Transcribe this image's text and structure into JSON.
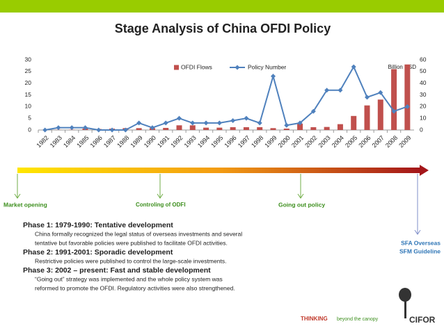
{
  "chart_data": {
    "type": "bar",
    "title": "Stage Analysis of China OFDI Policy",
    "annotation": "Billion USD",
    "categories": [
      "1982",
      "1983",
      "1984",
      "1985",
      "1986",
      "1987",
      "1988",
      "1989",
      "1990",
      "1991",
      "1992",
      "1993",
      "1994",
      "1995",
      "1996",
      "1997",
      "1998",
      "1999",
      "2000",
      "2001",
      "2002",
      "2003",
      "2004",
      "2005",
      "2006",
      "2007",
      "2008",
      "2009"
    ],
    "series": [
      {
        "name": "OFDI Flows",
        "color": "#c0504d",
        "type": "bar",
        "values": [
          0.04,
          0.09,
          0.13,
          0.6,
          0.45,
          0.6,
          0.8,
          0.8,
          0.8,
          0.9,
          2.0,
          2.0,
          1.0,
          1.0,
          1.2,
          1.2,
          1.2,
          0.8,
          0.6,
          2.7,
          1.2,
          1.3,
          2.5,
          6.0,
          10.5,
          13.0,
          26.0,
          28.0
        ]
      },
      {
        "name": "Policy Number",
        "color": "#4f81bd",
        "type": "line",
        "axis": "y2",
        "values": [
          0,
          2,
          2,
          2,
          0,
          0,
          0,
          6,
          2,
          6,
          10,
          6,
          6,
          6,
          8,
          10,
          6,
          46,
          4,
          6,
          16,
          34,
          34,
          54,
          28,
          32,
          16,
          20
        ]
      }
    ],
    "ylim": [
      0,
      30
    ],
    "yticks": [
      0,
      5,
      10,
      15,
      20,
      25,
      30
    ],
    "y2lim": [
      0,
      60
    ],
    "y2ticks": [
      0,
      10,
      20,
      30,
      40,
      50,
      60
    ],
    "grid": false,
    "legend": "top"
  },
  "timeline": {
    "labels": [
      "Market opening",
      "Controling of ODFI",
      "Going out policy"
    ],
    "right_labels": [
      "SFA Overseas",
      "SFM Guideline"
    ]
  },
  "phases": [
    {
      "title": "Phase 1: 1979-1990: Tentative development",
      "lines": [
        "China formally recognized the legal status of overseas investments and several",
        "tentative but favorable policies were published to facilitate OFDI activities."
      ]
    },
    {
      "title": "Phase 2: 1991-2001: Sporadic development",
      "lines": [
        "Restrictive policies were published to control the large-scale investments."
      ]
    },
    {
      "title": "Phase 3: 2002 – present: Fast and stable development",
      "lines": [
        "“Going out” strategy was implemented and the whole policy system was",
        "reformed to promote the OFDI. Regulatory activities were also strengthened."
      ]
    }
  ],
  "footer": {
    "tagline_bold": "THINKING",
    "tagline": "beyond the canopy",
    "logo": "CIFOR"
  }
}
